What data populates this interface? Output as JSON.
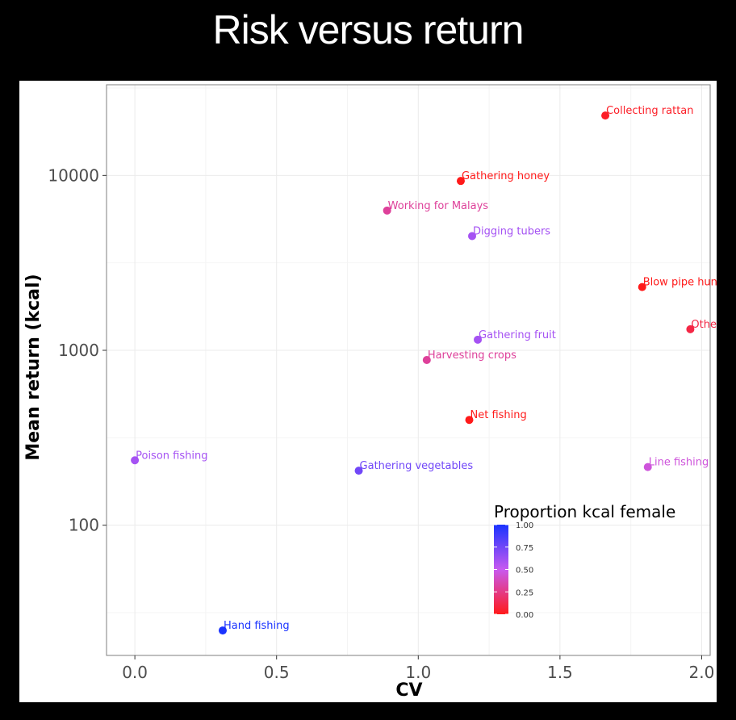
{
  "slide": {
    "title": "Risk versus return"
  },
  "chart_data": {
    "type": "scatter",
    "title": "",
    "xlabel": "CV",
    "ylabel": "Mean return (kcal)",
    "xlim": [
      -0.1,
      2.03
    ],
    "ylim": [
      18,
      33000
    ],
    "yscale": "log",
    "x_ticks": [
      0.0,
      0.5,
      1.0,
      1.5,
      2.0
    ],
    "x_tick_labels": [
      "0.0",
      "0.5",
      "1.0",
      "1.5",
      "2.0"
    ],
    "y_ticks": [
      100,
      1000,
      10000
    ],
    "y_tick_labels": [
      "100",
      "1000",
      "10000"
    ],
    "grid": true,
    "legend": {
      "title": "Proportion kcal female",
      "position": "bottom-right",
      "type": "colorbar",
      "ticks": [
        1.0,
        0.75,
        0.5,
        0.25,
        0.0
      ],
      "tick_labels": [
        "1.00",
        "0.75",
        "0.50",
        "0.25",
        "0.00"
      ],
      "low_color": "#ff1a1a",
      "mid_color": "#c85af0",
      "high_color": "#1a33ff"
    },
    "points": [
      {
        "label": "Collecting rattan",
        "x": 1.66,
        "y": 22000,
        "female": 0.03
      },
      {
        "label": "Gathering honey",
        "x": 1.15,
        "y": 9300,
        "female": 0.0
      },
      {
        "label": "Working for Malays",
        "x": 0.89,
        "y": 6300,
        "female": 0.3
      },
      {
        "label": "Digging tubers",
        "x": 1.19,
        "y": 4500,
        "female": 0.6
      },
      {
        "label": "Blow pipe hun",
        "x": 1.79,
        "y": 2300,
        "female": 0.0
      },
      {
        "label": "Othe",
        "x": 1.96,
        "y": 1320,
        "female": 0.1
      },
      {
        "label": "Gathering fruit",
        "x": 1.21,
        "y": 1150,
        "female": 0.6
      },
      {
        "label": "Harvesting crops",
        "x": 1.03,
        "y": 880,
        "female": 0.3
      },
      {
        "label": "Net fishing",
        "x": 1.18,
        "y": 400,
        "female": 0.0
      },
      {
        "label": "Poison fishing",
        "x": 0.0,
        "y": 235,
        "female": 0.6
      },
      {
        "label": "Gathering vegetables",
        "x": 0.79,
        "y": 205,
        "female": 0.75
      },
      {
        "label": "Line fishing",
        "x": 1.81,
        "y": 215,
        "female": 0.45
      },
      {
        "label": "Hand fishing",
        "x": 0.31,
        "y": 25,
        "female": 1.0
      }
    ]
  }
}
